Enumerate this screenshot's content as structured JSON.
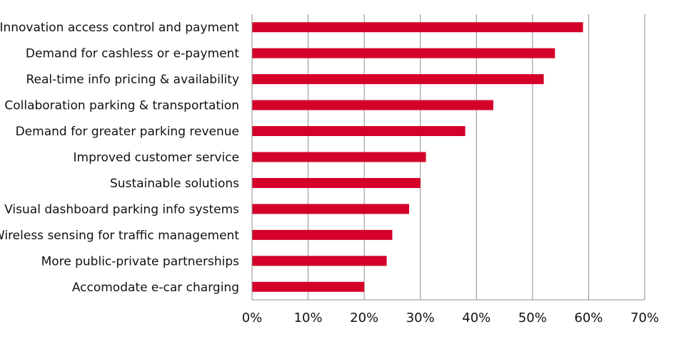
{
  "chart_data": {
    "type": "bar",
    "orientation": "horizontal",
    "categories": [
      "Innovation access control and payment",
      "Demand for cashless or e-payment",
      "Real-time info pricing & availability",
      "Collaboration parking & transportation",
      "Demand for greater parking revenue",
      "Improved customer service",
      "Sustainable solutions",
      "Visual dashboard parking info systems",
      "Wireless sensing for traffic management",
      "More public-private partnerships",
      "Accomodate e-car charging"
    ],
    "values": [
      59,
      54,
      52,
      43,
      38,
      31,
      30,
      28,
      25,
      24,
      20
    ],
    "xlim": [
      0,
      70
    ],
    "xticks": [
      0,
      10,
      20,
      30,
      40,
      50,
      60,
      70
    ],
    "tick_suffix": "%",
    "grid": "vertical",
    "bar_color": "#d40029",
    "title": "",
    "xlabel": "",
    "ylabel": ""
  }
}
